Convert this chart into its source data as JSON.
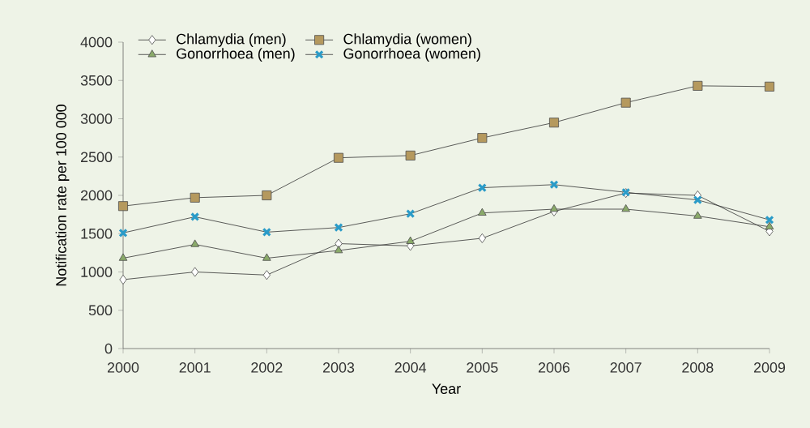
{
  "chart_data": {
    "type": "line",
    "xlabel": "Year",
    "ylabel": "Notification rate per 100 000",
    "x": [
      2000,
      2001,
      2002,
      2003,
      2004,
      2005,
      2006,
      2007,
      2008,
      2009
    ],
    "xlim": [
      2000,
      2009
    ],
    "xticks": [
      2000,
      2001,
      2002,
      2003,
      2004,
      2005,
      2006,
      2007,
      2008,
      2009
    ],
    "ylim": [
      0,
      4000
    ],
    "yticks": [
      0,
      500,
      1000,
      1500,
      2000,
      2500,
      3000,
      3500,
      4000
    ],
    "grid": false,
    "legend": "top left",
    "line_style": "solid",
    "series": [
      {
        "name": "Chlamydia (men)",
        "color": "#ffffff",
        "marker": "diamond",
        "values": [
          900,
          1000,
          960,
          1370,
          1340,
          1440,
          1790,
          2030,
          2000,
          1530
        ]
      },
      {
        "name": "Chlamydia (women)",
        "color": "#b5995e",
        "marker": "square",
        "values": [
          1860,
          1970,
          2000,
          2490,
          2520,
          2750,
          2950,
          3210,
          3430,
          3420
        ]
      },
      {
        "name": "Gonorrhoea (men)",
        "color": "#8aaa6a",
        "marker": "triangle",
        "values": [
          1180,
          1360,
          1180,
          1280,
          1400,
          1770,
          1820,
          1820,
          1730,
          1590
        ]
      },
      {
        "name": "Gonorrhoea (women)",
        "color": "#2a9bc8",
        "marker": "cross",
        "values": [
          1510,
          1720,
          1520,
          1580,
          1760,
          2100,
          2140,
          2040,
          1940,
          1680
        ]
      }
    ]
  }
}
